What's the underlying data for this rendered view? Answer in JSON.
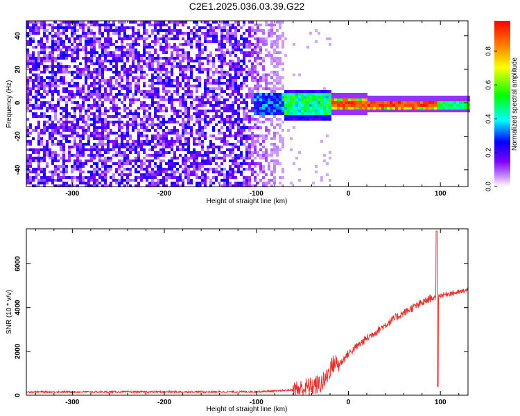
{
  "title": "C2E1.2025.036.03.39.G22",
  "chart_data": [
    {
      "type": "heatmap",
      "xlabel": "Height of straight line (km)",
      "ylabel": "Frequency (Hz)",
      "xlim": [
        -350,
        130
      ],
      "ylim": [
        -50,
        49
      ],
      "xticks": [
        -300,
        -200,
        -100,
        0,
        100
      ],
      "yticks": [
        -40,
        -20,
        0,
        20,
        40
      ],
      "colorbar": {
        "label": "Normalized spectral amplitude",
        "range": [
          0,
          0.98
        ],
        "ticks": [
          0.0,
          0.2,
          0.4,
          0.6,
          0.8
        ],
        "colormap": [
          "#ffffff",
          "#8000ff",
          "#0000ff",
          "#00ffff",
          "#00ff00",
          "#ffff00",
          "#ff8000",
          "#ff0000"
        ]
      },
      "description_points": [
        {
          "x": -350,
          "note_value": 0.3
        },
        {
          "x": -110,
          "note_value": 0.3
        },
        {
          "x": -70,
          "note_value": 0.5
        },
        {
          "x": 0,
          "note_value": 0.95
        },
        {
          "x": 90,
          "note_value": 0.9
        },
        {
          "x": 130,
          "note_value": 0.6
        }
      ]
    },
    {
      "type": "line",
      "xlabel": "Height of straight line (km)",
      "ylabel": "SNR (10 * v/v)",
      "xlim": [
        -350,
        130
      ],
      "ylim": [
        0,
        7600
      ],
      "xticks": [
        -300,
        -200,
        -100,
        0,
        100
      ],
      "yticks": [
        0,
        2000,
        4000,
        6000
      ],
      "color": "#e8302c",
      "x": [
        -350,
        -300,
        -250,
        -200,
        -150,
        -100,
        -80,
        -60,
        -50,
        -40,
        -30,
        -25,
        -20,
        -15,
        -10,
        0,
        10,
        20,
        30,
        40,
        50,
        60,
        70,
        80,
        90,
        95,
        97,
        100,
        105,
        110,
        120,
        130
      ],
      "y": [
        150,
        150,
        150,
        150,
        150,
        160,
        190,
        240,
        300,
        400,
        520,
        700,
        1200,
        1500,
        1400,
        1900,
        2250,
        2600,
        2900,
        3200,
        3500,
        3750,
        4000,
        4200,
        4450,
        4400,
        4550,
        4550,
        4600,
        4650,
        4700,
        4800
      ]
    }
  ]
}
